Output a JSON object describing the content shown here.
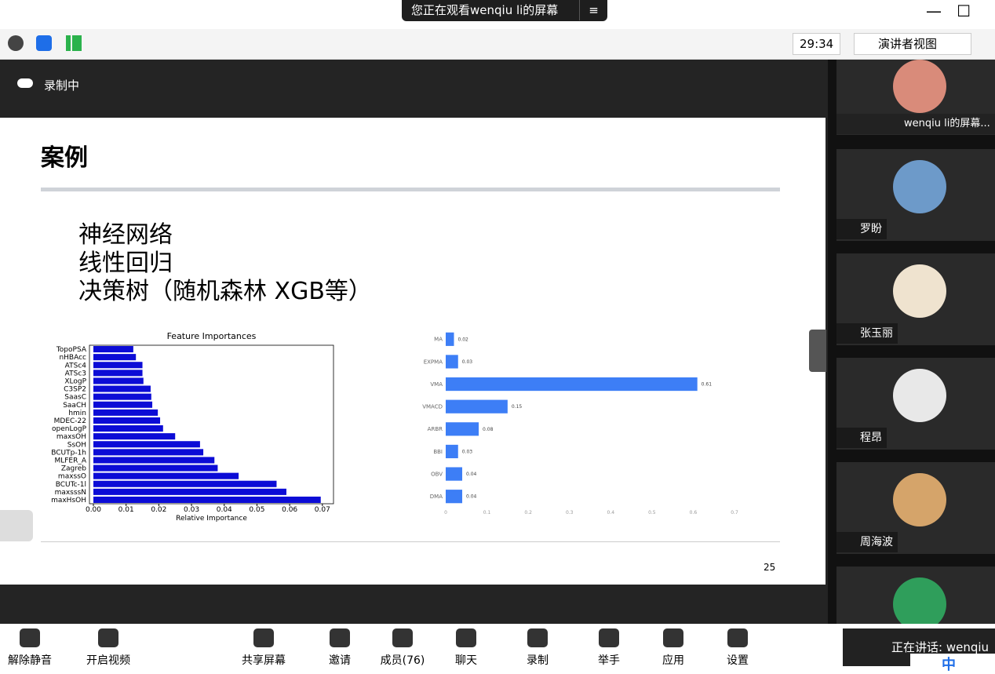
{
  "top_bar": {
    "sharing_banner": "您正在观看wenqiu li的屏幕"
  },
  "meeting_toolbar": {
    "timer": "29:34",
    "view_mode": "演讲者视图"
  },
  "recording_status": "录制中",
  "slide": {
    "title": "案例",
    "bullets": [
      "神经网络",
      "线性回归",
      "决策树（随机森林 XGB等）"
    ],
    "page_number": "25"
  },
  "chart_data": [
    {
      "type": "bar",
      "horizontal": true,
      "title": "Feature Importances",
      "xlabel": "Relative Importance",
      "color": "#0c0cd6",
      "frame": true,
      "categories": [
        "TopoPSA",
        "nHBAcc",
        "ATSc4",
        "ATSc3",
        "XLogP",
        "C3SP2",
        "SaasC",
        "SaaCH",
        "hmin",
        "MDEC-22",
        "openLogP",
        "maxsOH",
        "SsOH",
        "BCUTp-1h",
        "MLFER_A",
        "Zagreb",
        "maxssO",
        "BCUTc-1l",
        "maxsssN",
        "maxHsOH"
      ],
      "values": [
        0.0122,
        0.013,
        0.015,
        0.015,
        0.0153,
        0.0175,
        0.0177,
        0.018,
        0.0197,
        0.0204,
        0.0213,
        0.025,
        0.0326,
        0.0336,
        0.037,
        0.038,
        0.0444,
        0.056,
        0.059,
        0.0695
      ],
      "xlim": [
        -0.0012,
        0.0734
      ],
      "xticks": [
        {
          "value": 0,
          "label": "0.00"
        },
        {
          "value": 0.01,
          "label": "0.01"
        },
        {
          "value": 0.02,
          "label": "0.02"
        },
        {
          "value": 0.03,
          "label": "0.03"
        },
        {
          "value": 0.04,
          "label": "0.04"
        },
        {
          "value": 0.05,
          "label": "0.05"
        },
        {
          "value": 0.06,
          "label": "0.06"
        },
        {
          "value": 0.07,
          "label": "0.07"
        }
      ]
    },
    {
      "type": "bar",
      "horizontal": true,
      "color": "#3d7ef6",
      "frame": false,
      "categories": [
        "MA",
        "EXPMA",
        "VMA",
        "VMACD",
        "ARBR",
        "BBI",
        "OBV",
        "DMA"
      ],
      "values": [
        0.02,
        0.03,
        0.61,
        0.15,
        0.08,
        0.03,
        0.04,
        0.04
      ],
      "xlim": [
        0,
        0.7
      ],
      "xticks": [
        0,
        0.1,
        0.2,
        0.3,
        0.4,
        0.5,
        0.6,
        0.7
      ]
    }
  ],
  "participants": [
    {
      "name": "wenqiu li的屏幕..."
    },
    {
      "name": "罗盼"
    },
    {
      "name": "张玉丽"
    },
    {
      "name": "程昂"
    },
    {
      "name": "周海波"
    }
  ],
  "bottom_toolbar": {
    "buttons": [
      "解除静音",
      "开启视频",
      "共享屏幕",
      "邀请",
      "成员(76)",
      "聊天",
      "录制",
      "举手",
      "应用",
      "设置"
    ]
  },
  "speaking": "正在讲话: wenqiu",
  "ime": "中"
}
